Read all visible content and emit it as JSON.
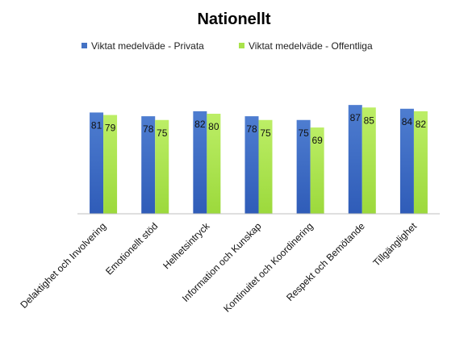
{
  "chart_data": {
    "type": "bar",
    "title": "Nationellt",
    "categories": [
      "Delaktighet och Involvering",
      "Emotionellt stöd",
      "Helhetsintryck",
      "Information och Kunskap",
      "Kontinuitet och Koordinering",
      "Respekt och Bemötande",
      "Tillgänglighet"
    ],
    "series": [
      {
        "name": "Viktat medelväde - Privata",
        "values": [
          81,
          78,
          82,
          78,
          75,
          87,
          84
        ],
        "color": "#4472C4"
      },
      {
        "name": "Viktat medelväde - Offentliga",
        "values": [
          79,
          75,
          80,
          75,
          69,
          85,
          82
        ],
        "color": "#A9E34B"
      }
    ],
    "ylim": [
      0,
      100
    ],
    "grid": false,
    "legend_position": "top",
    "data_labels": true
  }
}
